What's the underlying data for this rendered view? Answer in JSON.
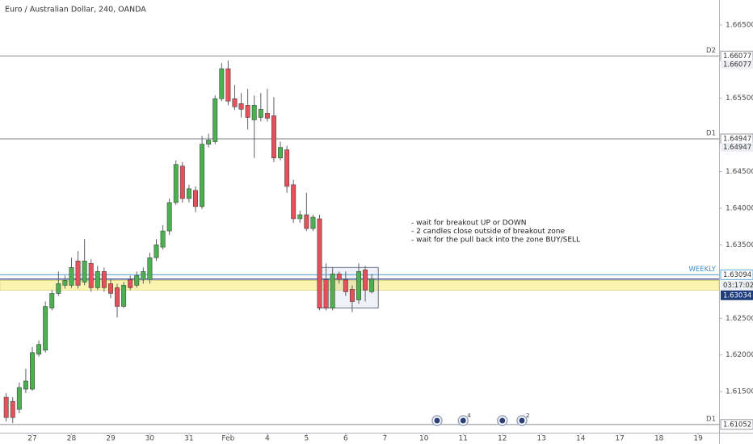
{
  "chart_data": {
    "type": "candlestick",
    "title": "Euro / Australian Dollar, 240, OANDA",
    "x": [
      -4,
      -3,
      -2,
      -1,
      0,
      1,
      2,
      3,
      4,
      5,
      6,
      7,
      8,
      9,
      10,
      11,
      12,
      13,
      14,
      15,
      16,
      17,
      18,
      19,
      20,
      21,
      22,
      23,
      24,
      25,
      26,
      27,
      28,
      29,
      30,
      31,
      32,
      33,
      34,
      35,
      36,
      37,
      38,
      39,
      40,
      41,
      42,
      43,
      44,
      45,
      46,
      47,
      48,
      49,
      50,
      51,
      52
    ],
    "open": [
      1.61424,
      1.61368,
      1.61258,
      1.61534,
      1.61534,
      1.6201,
      1.62065,
      1.6264,
      1.62839,
      1.6295,
      1.6295,
      1.63282,
      1.62994,
      1.63249,
      1.62917,
      1.63138,
      1.62972,
      1.62917,
      1.62662,
      1.63027,
      1.6295,
      1.63027,
      1.63027,
      1.63326,
      1.6347,
      1.63691,
      1.64078,
      1.64576,
      1.64133,
      1.64244,
      1.64023,
      1.64874,
      1.64908,
      1.65494,
      1.65903,
      1.65494,
      1.65427,
      1.65405,
      1.65206,
      1.65239,
      1.65295,
      1.65261,
      1.64686,
      1.64797,
      1.64321,
      1.63857,
      1.63912,
      1.63724,
      1.63857,
      1.63027,
      1.6264,
      1.63105,
      1.63027,
      1.62895,
      1.62751,
      1.6316,
      1.62861
    ],
    "high": [
      1.61479,
      1.61424,
      1.61623,
      1.61811,
      1.62109,
      1.62198,
      1.62729,
      1.62884,
      1.63138,
      1.63083,
      1.63326,
      1.63415,
      1.6358,
      1.63304,
      1.63215,
      1.63193,
      1.63027,
      1.62972,
      1.62994,
      1.63083,
      1.63138,
      1.63193,
      1.63392,
      1.6358,
      1.63768,
      1.64133,
      1.64653,
      1.64631,
      1.64321,
      1.64299,
      1.64985,
      1.65018,
      1.65538,
      1.6598,
      1.66014,
      1.65682,
      1.65571,
      1.65627,
      1.65538,
      1.65571,
      1.65627,
      1.65516,
      1.64908,
      1.64852,
      1.64388,
      1.63967,
      1.64211,
      1.63912,
      1.63912,
      1.63249,
      1.63193,
      1.63138,
      1.63138,
      1.6295,
      1.63249,
      1.63215,
      1.63105
    ],
    "low": [
      1.61092,
      1.6107,
      1.61203,
      1.61479,
      1.61512,
      1.61977,
      1.62032,
      1.62607,
      1.62806,
      1.62906,
      1.62917,
      1.62906,
      1.6295,
      1.62861,
      1.62884,
      1.62861,
      1.62773,
      1.62508,
      1.6264,
      1.62884,
      1.62917,
      1.62972,
      1.62972,
      1.63282,
      1.63437,
      1.63636,
      1.64045,
      1.64078,
      1.64078,
      1.63945,
      1.6399,
      1.6483,
      1.64874,
      1.65461,
      1.65405,
      1.65339,
      1.65239,
      1.65073,
      1.64686,
      1.65184,
      1.65184,
      1.64631,
      1.64653,
      1.64211,
      1.63802,
      1.63802,
      1.63691,
      1.63691,
      1.62607,
      1.62607,
      1.62607,
      1.62972,
      1.62806,
      1.62585,
      1.62696,
      1.62729,
      1.62839
    ],
    "close": [
      1.61147,
      1.61147,
      1.61556,
      1.61645,
      1.62032,
      1.62143,
      1.62662,
      1.62839,
      1.62972,
      1.63016,
      1.63193,
      1.6295,
      1.63282,
      1.62917,
      1.63138,
      1.62917,
      1.62839,
      1.62662,
      1.6295,
      1.62917,
      1.63083,
      1.63138,
      1.63326,
      1.63503,
      1.63691,
      1.64078,
      1.64598,
      1.64133,
      1.64266,
      1.64023,
      1.64874,
      1.6493,
      1.65494,
      1.65903,
      1.65461,
      1.65383,
      1.6535,
      1.65239,
      1.65405,
      1.6535,
      1.65228,
      1.64686,
      1.6483,
      1.64299,
      1.63857,
      1.63912,
      1.63724,
      1.63879,
      1.6264,
      1.6264,
      1.63105,
      1.63027,
      1.62861,
      1.62729,
      1.63138,
      1.62884,
      1.63034
    ],
    "up_color": "#4caf50",
    "down_color": "#e5515b",
    "xlim": [
      -4.95,
      105.2
    ],
    "xticks": [
      {
        "value": 0,
        "label": "27"
      },
      {
        "value": 6,
        "label": "28"
      },
      {
        "value": 12,
        "label": "29"
      },
      {
        "value": 18,
        "label": "30"
      },
      {
        "value": 24,
        "label": "31"
      },
      {
        "value": 30,
        "label": "Feb"
      },
      {
        "value": 36,
        "label": "4"
      },
      {
        "value": 42,
        "label": "5"
      },
      {
        "value": 48,
        "label": "6"
      },
      {
        "value": 54,
        "label": "7"
      },
      {
        "value": 60,
        "label": "10"
      },
      {
        "value": 66,
        "label": "11"
      },
      {
        "value": 72,
        "label": "12"
      },
      {
        "value": 78,
        "label": "13"
      },
      {
        "value": 84,
        "label": "14"
      },
      {
        "value": 90,
        "label": "17"
      },
      {
        "value": 96,
        "label": "18"
      },
      {
        "value": 102,
        "label": "19"
      }
    ],
    "ylim": [
      1.6094,
      1.6684
    ],
    "yticks": [
      {
        "value": 1.665,
        "label": "1.66500"
      },
      {
        "value": 1.655,
        "label": "1.65500"
      },
      {
        "value": 1.645,
        "label": "1.64500"
      },
      {
        "value": 1.64,
        "label": "1.64000"
      },
      {
        "value": 1.635,
        "label": "1.63500"
      },
      {
        "value": 1.625,
        "label": "1.62500"
      },
      {
        "value": 1.62,
        "label": "1.62000"
      },
      {
        "value": 1.615,
        "label": "1.61500"
      }
    ],
    "levels": [
      {
        "name": "D2",
        "value": 1.66077,
        "label": "1.66077",
        "color": "#9598a1"
      },
      {
        "name": "D1",
        "value": 1.64947,
        "label": "1.64947",
        "color": "#9598a1"
      },
      {
        "name": "WEEKLY",
        "value": 1.63094,
        "label": "1.63094",
        "color": "#5fa8e0"
      },
      {
        "name": "D1",
        "value": 1.61052,
        "label": "1.61052",
        "color": "#9598a1"
      }
    ],
    "zone": {
      "high": 1.63016,
      "low": 1.62884,
      "color": "#fbf3b0"
    },
    "box": {
      "x0": 43.7,
      "x1": 53,
      "high": 1.63193,
      "low": 1.6264
    },
    "last_price": {
      "value": 1.63034,
      "label": "1.63034",
      "color": "#1e3d7b"
    },
    "countdown": "03:17:02",
    "annotations": [
      "- wait for breakout UP or DOWN",
      "- 2 candles close outside of breakout zone",
      "- wait for the pull back into the zone BUY/SELL"
    ],
    "events": [
      {
        "x": 62
      },
      {
        "x": 66,
        "count": 4
      },
      {
        "x": 72
      },
      {
        "x": 75,
        "count": 2
      }
    ]
  }
}
